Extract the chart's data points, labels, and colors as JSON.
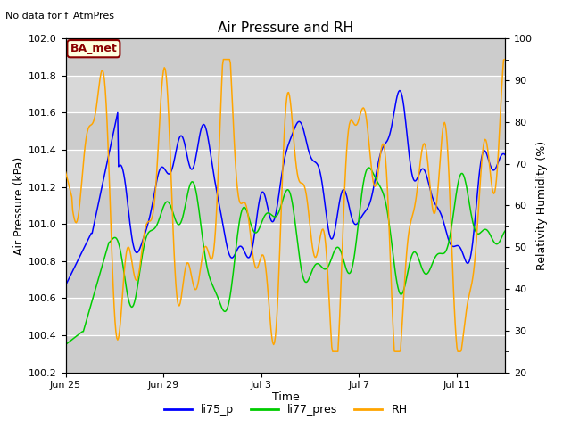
{
  "title": "Air Pressure and RH",
  "top_left_text": "No data for f_AtmPres",
  "xlabel": "Time",
  "ylabel_left": "Air Pressure (kPa)",
  "ylabel_right": "Relativity Humidity (%)",
  "annotation_text": "BA_met",
  "ylim_left": [
    100.2,
    102.0
  ],
  "ylim_right": [
    20,
    100
  ],
  "yticks_left": [
    100.2,
    100.4,
    100.6,
    100.8,
    101.0,
    101.2,
    101.4,
    101.6,
    101.8,
    102.0
  ],
  "yticks_right": [
    20,
    30,
    40,
    50,
    60,
    70,
    80,
    90,
    100
  ],
  "xtick_labels": [
    "Jun 25",
    "Jun 29",
    "Jul 3",
    "Jul 7",
    "Jul 11"
  ],
  "legend_labels": [
    "li75_p",
    "li77_pres",
    "RH"
  ],
  "line_colors": [
    "blue",
    "#00cc00",
    "orange"
  ],
  "plot_bg_color": "#e0e0e0",
  "band_color_light": "#d0d0d0",
  "band_color_dark": "#c0c0c0",
  "grid_color": "white",
  "n_points": 500
}
